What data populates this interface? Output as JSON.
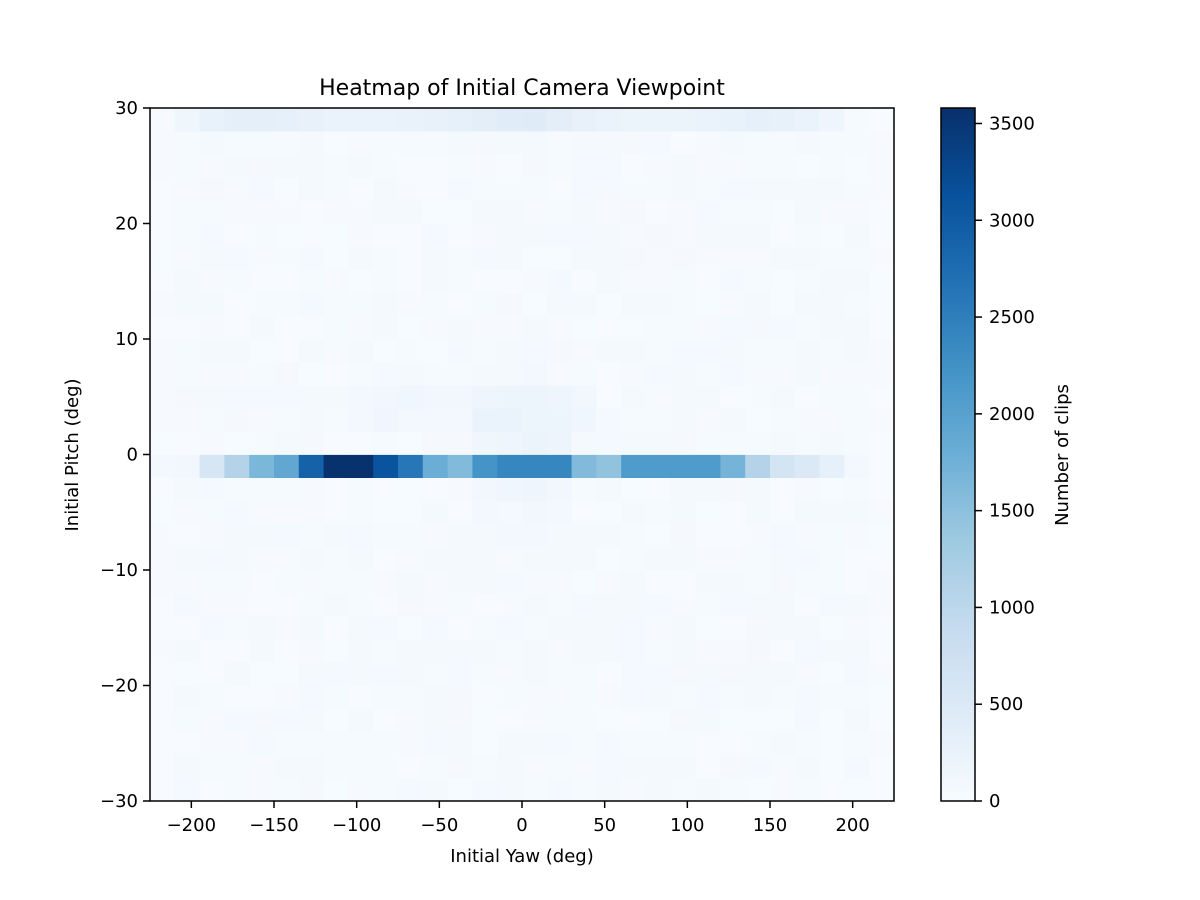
{
  "chart_data": {
    "type": "heatmap",
    "title": "Heatmap of Initial Camera Viewpoint",
    "xlabel": "Initial Yaw (deg)",
    "ylabel": "Initial Pitch (deg)",
    "xlim": [
      -225,
      225
    ],
    "ylim": [
      -30,
      30
    ],
    "xticks": [
      -200,
      -150,
      -100,
      -50,
      0,
      50,
      100,
      150,
      200
    ],
    "xtick_labels": [
      "−200",
      "−150",
      "−100",
      "−50",
      "0",
      "50",
      "100",
      "150",
      "200"
    ],
    "yticks": [
      -30,
      -20,
      -10,
      0,
      10,
      20,
      30
    ],
    "ytick_labels": [
      "−30",
      "−20",
      "−10",
      "0",
      "10",
      "20",
      "30"
    ],
    "colormap": "Blues",
    "colorbar": {
      "label": "Number of clips",
      "min": 0,
      "max": 3580,
      "ticks": [
        0,
        500,
        1000,
        1500,
        2000,
        2500,
        3000,
        3500
      ],
      "tick_labels": [
        "0",
        "500",
        "1000",
        "1500",
        "2000",
        "2500",
        "3000",
        "3500"
      ]
    },
    "grid": false,
    "bins": {
      "x_edges_start": -225,
      "x_bin_width": 15,
      "x_count": 30,
      "y_edges_start": -30,
      "y_bin_width": 2,
      "y_count": 30
    },
    "bands": [
      {
        "pitch_range": [
          -2,
          0
        ],
        "yaw_values": [
          80,
          110,
          600,
          1100,
          1650,
          1900,
          2900,
          3550,
          3550,
          3100,
          2600,
          1800,
          1600,
          2200,
          2400,
          2400,
          2400,
          1600,
          1450,
          2100,
          2100,
          2100,
          2100,
          1700,
          1100,
          650,
          500,
          300,
          80,
          0
        ]
      },
      {
        "pitch_range": [
          28,
          30
        ],
        "yaw_values": [
          20,
          140,
          260,
          330,
          330,
          300,
          270,
          240,
          230,
          240,
          250,
          270,
          300,
          360,
          420,
          430,
          350,
          270,
          230,
          210,
          200,
          210,
          230,
          260,
          300,
          290,
          240,
          160,
          30,
          0
        ]
      }
    ],
    "near_zero_note": "cells outside the bands hold small counts (roughly 0-250)"
  }
}
